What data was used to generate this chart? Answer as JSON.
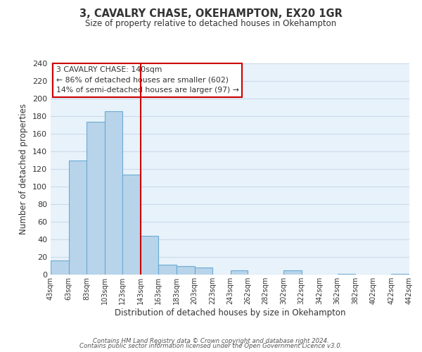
{
  "title": "3, CAVALRY CHASE, OKEHAMPTON, EX20 1GR",
  "subtitle": "Size of property relative to detached houses in Okehampton",
  "xlabel": "Distribution of detached houses by size in Okehampton",
  "ylabel": "Number of detached properties",
  "footer_line1": "Contains HM Land Registry data © Crown copyright and database right 2024.",
  "footer_line2": "Contains public sector information licensed under the Open Government Licence v3.0.",
  "bar_edges": [
    43,
    63,
    83,
    103,
    123,
    143,
    163,
    183,
    203,
    223,
    243,
    262,
    282,
    302,
    322,
    342,
    362,
    382,
    402,
    422,
    442
  ],
  "bar_heights": [
    16,
    130,
    174,
    186,
    114,
    44,
    11,
    10,
    8,
    0,
    5,
    0,
    0,
    5,
    0,
    0,
    1,
    0,
    0,
    1
  ],
  "bar_color": "#b8d4ea",
  "bar_edge_color": "#6aaad4",
  "reference_line_x": 143,
  "reference_line_color": "#cc0000",
  "annotation_line1": "3 CAVALRY CHASE: 140sqm",
  "annotation_line2": "← 86% of detached houses are smaller (602)",
  "annotation_line3": "14% of semi-detached houses are larger (97) →",
  "annotation_box_color": "#ffffff",
  "annotation_box_edge_color": "#cc0000",
  "ylim": [
    0,
    240
  ],
  "yticks": [
    0,
    20,
    40,
    60,
    80,
    100,
    120,
    140,
    160,
    180,
    200,
    220,
    240
  ],
  "grid_color": "#c8daea",
  "background_color": "#e8f2fa",
  "tick_labels": [
    "43sqm",
    "63sqm",
    "83sqm",
    "103sqm",
    "123sqm",
    "143sqm",
    "163sqm",
    "183sqm",
    "203sqm",
    "223sqm",
    "243sqm",
    "262sqm",
    "282sqm",
    "302sqm",
    "322sqm",
    "342sqm",
    "362sqm",
    "382sqm",
    "402sqm",
    "422sqm",
    "442sqm"
  ]
}
